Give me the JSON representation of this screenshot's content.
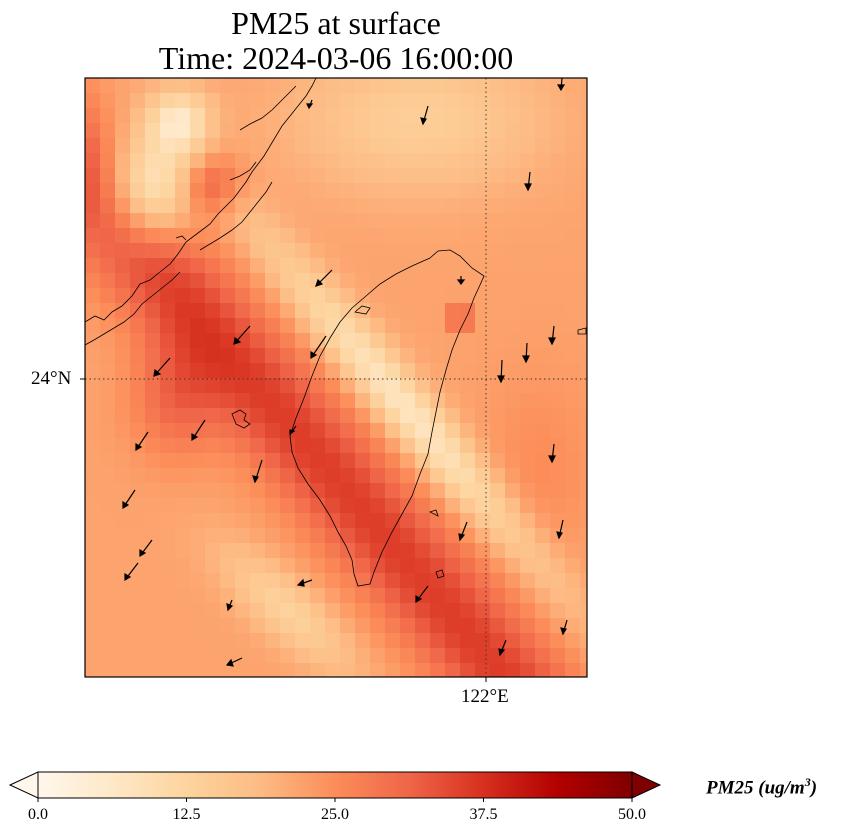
{
  "title": {
    "line1": "PM25 at surface",
    "line2": "Time: 2024-03-06 16:00:00"
  },
  "axes": {
    "lat_tick": "24°N",
    "lon_tick": "122°E"
  },
  "colorbar": {
    "label_text": "PM25 (ug/m",
    "label_sup": "3",
    "label_close": ")",
    "ticks": [
      "0.0",
      "12.5",
      "25.0",
      "37.5",
      "50.0"
    ],
    "tick_values": [
      0,
      12.5,
      25,
      37.5,
      50
    ],
    "vmin": 0,
    "vmax": 50,
    "extend": "both",
    "colormap": [
      "#fff7ec",
      "#fee8c8",
      "#fdd49e",
      "#fdbb84",
      "#fc8d59",
      "#ef6548",
      "#d7301f",
      "#b30000",
      "#7f0000"
    ]
  },
  "map": {
    "projection": "lat-lon",
    "gridlines": "dotted",
    "coastline_color": "#000000",
    "features": [
      "Taiwan island",
      "Fujian coast (China mainland)",
      "Penghu islands"
    ],
    "field": "PM25",
    "wind_vectors": true
  }
}
